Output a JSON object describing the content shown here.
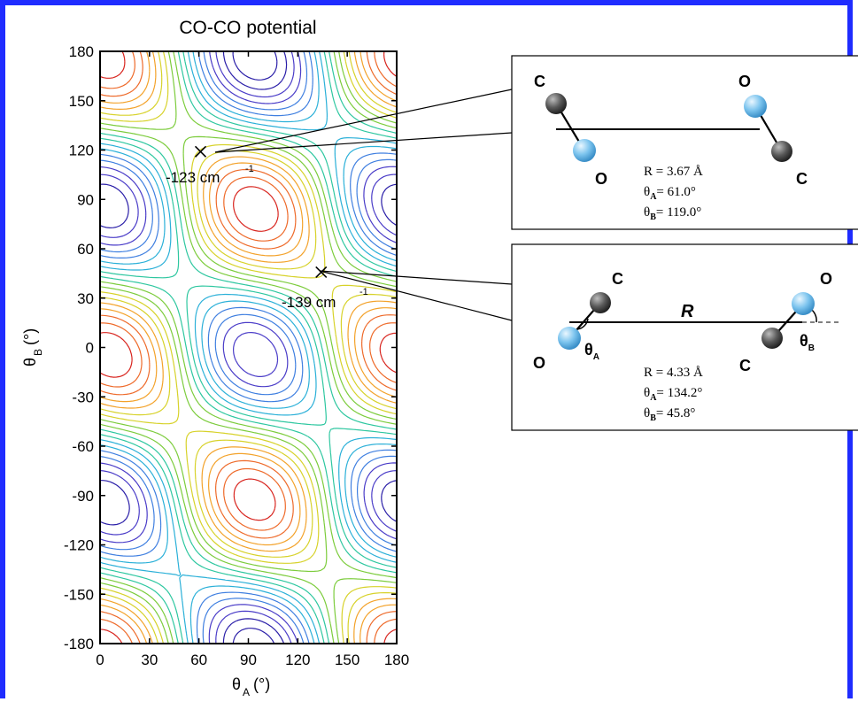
{
  "chart_data": {
    "type": "contour",
    "title": "CO-CO potential",
    "xlabel": "θ_A (°)",
    "ylabel": "θ_B (°)",
    "xlim": [
      0,
      180
    ],
    "ylim": [
      -180,
      180
    ],
    "x_ticks": [
      0,
      30,
      60,
      90,
      120,
      150,
      180
    ],
    "y_ticks": [
      180,
      150,
      120,
      90,
      60,
      30,
      0,
      -30,
      -60,
      -90,
      -120,
      -150,
      -180
    ],
    "minima": [
      {
        "thetaA": 61,
        "thetaB": 119,
        "label_value": "-123",
        "label_unit": "cm",
        "label_exp": "-1"
      },
      {
        "thetaA": 134.2,
        "thetaB": 45.8,
        "label_value": "-139",
        "label_unit": "cm",
        "label_exp": "-1"
      }
    ],
    "grid": false,
    "legend": "none"
  },
  "insets": [
    {
      "atoms": {
        "c1": "C",
        "o1": "O",
        "o2": "O",
        "c2": "C"
      },
      "R": "R =  3.67 Å",
      "thetaA_sym": "θ",
      "thetaA_sub": "A",
      "thetaA_val": "= 61.0°",
      "thetaB_sym": "θ",
      "thetaB_sub": "B",
      "thetaB_val": "= 119.0°"
    },
    {
      "atoms": {
        "c1": "C",
        "o1": "O",
        "o2": "O",
        "c2": "C"
      },
      "bond_label": "R",
      "angle_a": "θ",
      "angle_a_sub": "A",
      "angle_b": "θ",
      "angle_b_sub": "B",
      "R": "R = 4.33 Å",
      "thetaA_sym": "θ",
      "thetaA_sub": "A",
      "thetaA_val": "= 134.2°",
      "thetaB_sym": "θ",
      "thetaB_sub": "B",
      "thetaB_val": "= 45.8°"
    }
  ],
  "colors": {
    "frame": "#1f2cff",
    "carbon": "#555555",
    "oxygen": "#7cc4ee",
    "contour_scale": [
      "#2a1ea8",
      "#4a3cc8",
      "#3f7fe0",
      "#2bb0d8",
      "#2ec7a0",
      "#7ccc3c",
      "#d7d22a",
      "#f3a22a",
      "#ee6a2a",
      "#d8241e"
    ]
  }
}
